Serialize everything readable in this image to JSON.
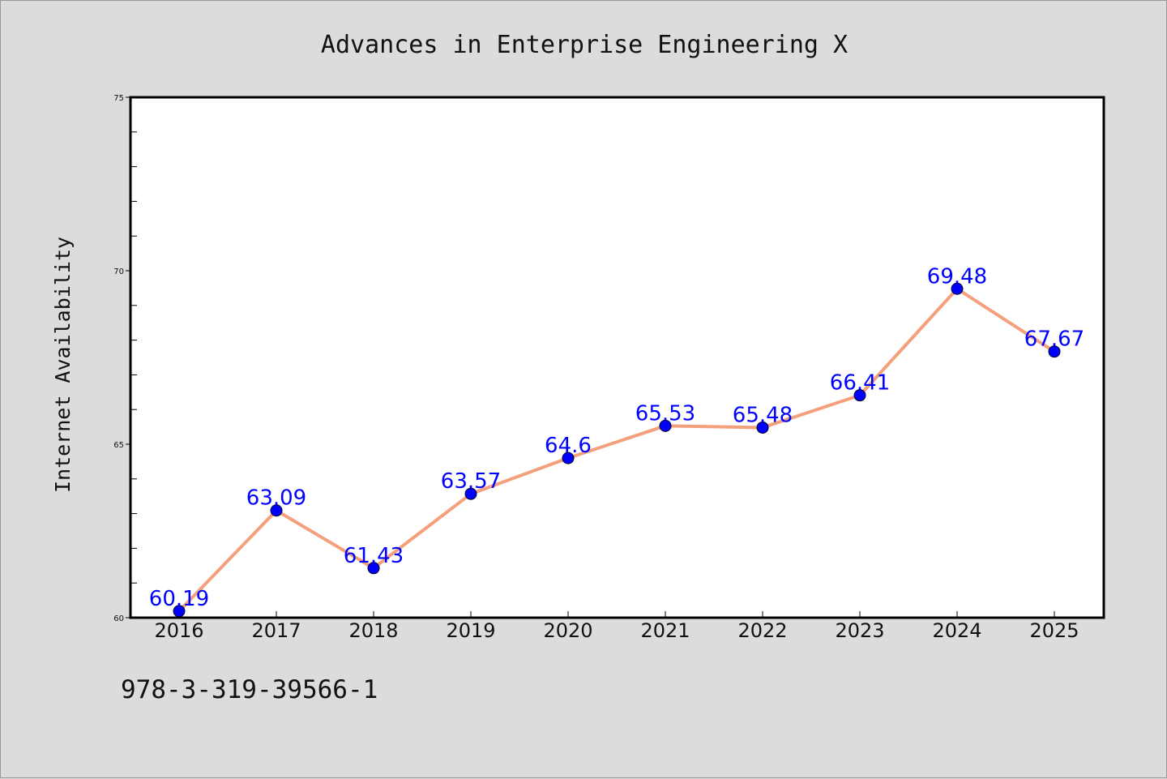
{
  "chart_data": {
    "type": "line",
    "title": "Advances in Enterprise Engineering X",
    "xlabel": "",
    "ylabel": "Internet Availability",
    "categories": [
      "2016",
      "2017",
      "2018",
      "2019",
      "2020",
      "2021",
      "2022",
      "2023",
      "2024",
      "2025"
    ],
    "series": [
      {
        "values": [
          60.19,
          63.09,
          61.43,
          63.57,
          64.6,
          65.53,
          65.48,
          66.41,
          69.48,
          67.67
        ],
        "data_labels": [
          "60.19",
          "63.09",
          "61.43",
          "63.57",
          "64.6",
          "65.53",
          "65.48",
          "66.41",
          "69.48",
          "67.67"
        ]
      }
    ],
    "ylim": [
      60,
      75
    ],
    "yticks": [
      60,
      65,
      70,
      75
    ],
    "grid": false,
    "legend": "none",
    "colors": {
      "line": "#f4a07c",
      "marker": "#0000ff",
      "data_label": "#0000ff",
      "background": "#dcdcdc",
      "plot_background": "#ffffff"
    }
  },
  "footer": {
    "code": "978-3-319-39566-1"
  }
}
